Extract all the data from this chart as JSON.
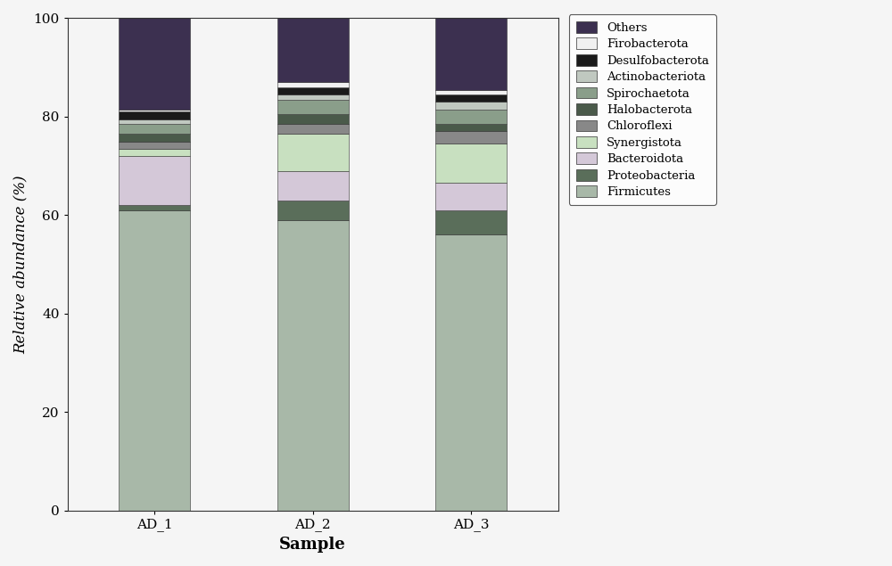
{
  "samples": [
    "AD_1",
    "AD_2",
    "AD_3"
  ],
  "categories": [
    "Firmicutes",
    "Proteobacteria",
    "Bacteroidota",
    "Synergistota",
    "Chloroflexi",
    "Halobacterota",
    "Spirochaetota",
    "Actinobacteriota",
    "Desulfobacterota",
    "Firobacterota",
    "Others"
  ],
  "colors": [
    "#a8b8a8",
    "#5a6e5a",
    "#d4c8d8",
    "#c8e0c0",
    "#888888",
    "#4a5a4a",
    "#8a9e8a",
    "#c0c8c0",
    "#1a1a1a",
    "#f0f0f0",
    "#3c3050"
  ],
  "values": {
    "AD_1": [
      61.0,
      1.0,
      10.0,
      1.5,
      1.5,
      1.5,
      2.0,
      1.0,
      1.5,
      0.5,
      19.5
    ],
    "AD_2": [
      59.0,
      4.0,
      6.0,
      7.5,
      2.0,
      2.0,
      3.0,
      1.0,
      1.5,
      1.0,
      13.0
    ],
    "AD_3": [
      56.0,
      5.0,
      5.5,
      8.0,
      2.5,
      1.5,
      3.0,
      1.5,
      1.5,
      1.0,
      14.5
    ]
  },
  "ylabel": "Relative abundance (%)",
  "xlabel": "Sample",
  "ylim": [
    0,
    100
  ],
  "yticks": [
    0,
    20,
    40,
    60,
    80,
    100
  ],
  "bar_width": 0.45,
  "figsize": [
    10.0,
    6.35
  ],
  "dpi": 100,
  "background": "#f5f5f5"
}
